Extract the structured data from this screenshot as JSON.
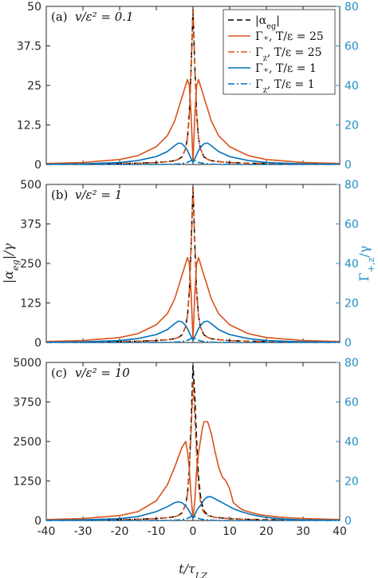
{
  "chart_data": [
    {
      "type": "line",
      "panel_label": "(a)",
      "annotation": "v/ε² = 0.1",
      "x": [
        -40,
        -30,
        -20,
        -15,
        -10,
        -7,
        -5,
        -4,
        -3,
        -2,
        -1.5,
        -1,
        -0.5,
        0,
        0.5,
        1,
        1.5,
        2,
        3,
        4,
        5,
        7,
        10,
        15,
        20,
        30,
        40
      ],
      "xlim": [
        -40,
        40
      ],
      "ylim_left": [
        0,
        50
      ],
      "yticks_left": [
        "0",
        "12.5",
        "25",
        "37.5",
        "50"
      ],
      "ylim_right": [
        0,
        80
      ],
      "yticks_right": [
        "0",
        "20",
        "40",
        "60",
        "80"
      ],
      "series": [
        {
          "name": "|α_eg|",
          "axis": "left",
          "style": "dashed",
          "color": "#000000",
          "values": [
            0.15,
            0.2,
            0.3,
            0.4,
            0.6,
            0.9,
            1.2,
            1.6,
            2.4,
            5,
            8.5,
            16,
            31,
            49,
            31,
            16,
            8.5,
            5,
            2.4,
            1.6,
            1.2,
            0.9,
            0.6,
            0.4,
            0.3,
            0.2,
            0.15
          ]
        },
        {
          "name": "Γ₊, T/ε = 25",
          "axis": "right",
          "style": "solid",
          "color": "#d95319",
          "values": [
            0.5,
            1,
            2.5,
            4.5,
            9,
            14.5,
            22,
            28,
            34,
            40,
            43,
            40,
            25,
            1,
            25,
            40,
            43,
            40,
            34,
            28,
            22,
            14.5,
            9,
            4.5,
            2.5,
            1,
            0.5
          ]
        },
        {
          "name": "Γ_z, T/ε = 25",
          "axis": "right",
          "style": "dashdot",
          "color": "#d95319",
          "values": [
            0.2,
            0.3,
            0.5,
            0.6,
            1,
            1.4,
            1.9,
            2.6,
            3.8,
            8,
            13.5,
            25,
            50,
            78,
            50,
            25,
            13.5,
            8,
            3.8,
            2.6,
            1.9,
            1.4,
            1,
            0.6,
            0.5,
            0.3,
            0.2
          ]
        },
        {
          "name": "Γ₊, T/ε = 1",
          "axis": "right",
          "style": "solid",
          "color": "#0072bd",
          "values": [
            0.1,
            0.3,
            1,
            2,
            4,
            6.5,
            9.5,
            10.8,
            10.5,
            8.5,
            7,
            5,
            3,
            1,
            3,
            5,
            7,
            8.5,
            10.5,
            10.8,
            9.5,
            6.5,
            4,
            2,
            1,
            0.3,
            0.1
          ]
        },
        {
          "name": "Γ_z, T/ε = 1",
          "axis": "right",
          "style": "dashdot",
          "color": "#0072bd",
          "values": [
            0,
            0,
            0,
            0,
            0,
            0.1,
            0.2,
            0.3,
            0.5,
            0.8,
            1.1,
            1.5,
            2,
            2.5,
            2,
            1.5,
            1.1,
            0.8,
            0.5,
            0.3,
            0.2,
            0.1,
            0,
            0,
            0,
            0,
            0
          ]
        }
      ]
    },
    {
      "type": "line",
      "panel_label": "(b)",
      "annotation": "v/ε² = 1",
      "x": [
        -40,
        -30,
        -20,
        -15,
        -10,
        -7,
        -5,
        -4,
        -3,
        -2,
        -1.5,
        -1,
        -0.5,
        0,
        0.5,
        1,
        1.5,
        2,
        3,
        4,
        5,
        7,
        10,
        15,
        20,
        30,
        40
      ],
      "xlim": [
        -40,
        40
      ],
      "ylim_left": [
        0,
        500
      ],
      "yticks_left": [
        "0",
        "125",
        "250",
        "375",
        "500"
      ],
      "ylim_right": [
        0,
        80
      ],
      "yticks_right": [
        "0",
        "20",
        "40",
        "60",
        "80"
      ],
      "series": [
        {
          "name": "|α_eg|",
          "axis": "left",
          "style": "dashed",
          "color": "#000000",
          "values": [
            1.5,
            2,
            3,
            4,
            6,
            9,
            12,
            16,
            24,
            50,
            85,
            160,
            310,
            490,
            310,
            160,
            85,
            50,
            24,
            16,
            12,
            9,
            6,
            4,
            3,
            2,
            1.5
          ]
        },
        {
          "name": "Γ₊, T/ε = 25",
          "axis": "right",
          "style": "solid",
          "color": "#d95319",
          "values": [
            0.5,
            1,
            2.5,
            4.5,
            9,
            14.5,
            22,
            28,
            34,
            40,
            43,
            40,
            25,
            1,
            25,
            40,
            43,
            40,
            34,
            28,
            22,
            14.5,
            9,
            4.5,
            2.5,
            1,
            0.5
          ]
        },
        {
          "name": "Γ_z, T/ε = 25",
          "axis": "right",
          "style": "dashdot",
          "color": "#d95319",
          "values": [
            0.2,
            0.3,
            0.5,
            0.6,
            1,
            1.4,
            1.9,
            2.6,
            3.8,
            8,
            13.5,
            25,
            50,
            78,
            50,
            25,
            13.5,
            8,
            3.8,
            2.6,
            1.9,
            1.4,
            1,
            0.6,
            0.5,
            0.3,
            0.2
          ]
        },
        {
          "name": "Γ₊, T/ε = 1",
          "axis": "right",
          "style": "solid",
          "color": "#0072bd",
          "values": [
            0.1,
            0.3,
            1,
            2,
            4,
            6.5,
            9.5,
            10.8,
            10.5,
            8.5,
            7,
            5,
            3,
            1,
            3,
            5,
            7,
            8.5,
            10.5,
            10.8,
            9.5,
            6.5,
            4,
            2,
            1,
            0.3,
            0.1
          ]
        },
        {
          "name": "Γ_z, T/ε = 1",
          "axis": "right",
          "style": "dashdot",
          "color": "#0072bd",
          "values": [
            0,
            0,
            0,
            0,
            0,
            0.1,
            0.2,
            0.3,
            0.5,
            0.8,
            1.1,
            1.5,
            2,
            2.5,
            2,
            1.5,
            1.1,
            0.8,
            0.5,
            0.3,
            0.2,
            0.1,
            0,
            0,
            0,
            0,
            0
          ]
        }
      ]
    },
    {
      "type": "line",
      "panel_label": "(c)",
      "annotation": "v/ε² = 10",
      "x": [
        -40,
        -30,
        -20,
        -15,
        -10,
        -7,
        -5,
        -4,
        -3,
        -2,
        -1.5,
        -1,
        -0.5,
        0,
        0.5,
        1,
        1.5,
        2,
        2.5,
        3,
        4,
        5,
        6,
        7,
        8,
        9,
        10,
        11,
        12,
        13,
        14,
        15,
        16,
        17,
        18,
        20,
        25,
        30,
        40
      ],
      "xlim": [
        -40,
        40
      ],
      "ylim_left": [
        0,
        5000
      ],
      "yticks_left": [
        "0",
        "1250",
        "2500",
        "3750",
        "5000"
      ],
      "ylim_right": [
        0,
        80
      ],
      "yticks_right": [
        "0",
        "20",
        "40",
        "60",
        "80"
      ],
      "series": [
        {
          "name": "|α_eg|",
          "axis": "left",
          "style": "dashed",
          "color": "#000000",
          "values": [
            15,
            20,
            30,
            40,
            60,
            90,
            120,
            160,
            240,
            500,
            850,
            1600,
            3100,
            4900,
            3900,
            2500,
            1400,
            800,
            500,
            300,
            180,
            130,
            100,
            90,
            80,
            70,
            60,
            55,
            50,
            45,
            40,
            38,
            35,
            32,
            30,
            28,
            22,
            18,
            15
          ]
        },
        {
          "name": "Γ₊, T/ε = 25",
          "axis": "right",
          "style": "solid",
          "color": "#d95319",
          "values": [
            0.5,
            1,
            2.5,
            4.5,
            10,
            18,
            27,
            32,
            37,
            40,
            35,
            26,
            12,
            1,
            10,
            26,
            34,
            40,
            46,
            50,
            50,
            44,
            35,
            27,
            22,
            20,
            16,
            9,
            7.5,
            6,
            5,
            4.5,
            4,
            3.5,
            3,
            2.5,
            1.5,
            1,
            0.5
          ]
        },
        {
          "name": "Γ_z, T/ε = 25",
          "axis": "right",
          "style": "dashdot",
          "color": "#d95319",
          "values": [
            0.2,
            0.3,
            0.5,
            0.6,
            1,
            1.4,
            1.9,
            2.6,
            3.8,
            8,
            13.5,
            25,
            45,
            70,
            52,
            32,
            18,
            10,
            6,
            4,
            2.5,
            2,
            1.6,
            1.4,
            1.2,
            1.1,
            1,
            0.9,
            0.8,
            0.7,
            0.6,
            0.6,
            0.5,
            0.5,
            0.5,
            0.4,
            0.3,
            0.2,
            0.2
          ]
        },
        {
          "name": "Γ₊, T/ε = 1",
          "axis": "right",
          "style": "solid",
          "color": "#0072bd",
          "values": [
            0.1,
            0.3,
            1,
            2,
            4.5,
            7,
            9,
            9.5,
            9,
            7.5,
            6.2,
            4.8,
            3,
            1,
            3,
            5,
            6.5,
            7.5,
            9,
            10.5,
            12,
            12,
            11,
            10,
            9,
            8,
            7,
            6,
            5.3,
            4.6,
            4,
            3.5,
            3,
            2.6,
            2.2,
            1.6,
            0.7,
            0.3,
            0.1
          ]
        },
        {
          "name": "Γ_z, T/ε = 1",
          "axis": "right",
          "style": "dashdot",
          "color": "#0072bd",
          "values": [
            0,
            0,
            0,
            0,
            0,
            0.1,
            0.2,
            0.3,
            0.5,
            0.8,
            1.1,
            1.5,
            2,
            2.5,
            2,
            1.5,
            1.1,
            0.8,
            0.6,
            0.5,
            0.3,
            0.2,
            0.1,
            0.1,
            0,
            0,
            0,
            0,
            0,
            0,
            0,
            0,
            0,
            0,
            0,
            0,
            0,
            0,
            0
          ]
        }
      ]
    }
  ],
  "axes": {
    "xlabel": "t/τ_LZ",
    "xticks": [
      "-40",
      "-30",
      "-20",
      "-10",
      "0",
      "10",
      "20",
      "30",
      "40"
    ],
    "ylabel_left": "|α_eg|/γ",
    "ylabel_right": "Γ_{+,z}/γ"
  },
  "legend": {
    "placement": "top-right of panel (a)",
    "entries": [
      {
        "label": "|α_eg|",
        "color": "#000000",
        "style": "dashed"
      },
      {
        "label": "Γ₊, T/ε = 25",
        "color": "#d95319",
        "style": "solid"
      },
      {
        "label": "Γ_z, T/ε = 25",
        "color": "#d95319",
        "style": "dashdot"
      },
      {
        "label": "Γ₊, T/ε = 1",
        "color": "#0072bd",
        "style": "solid"
      },
      {
        "label": "Γ_z, T/ε = 1",
        "color": "#0072bd",
        "style": "dashdot"
      }
    ]
  },
  "colors": {
    "right_axis": "#1f8fc4",
    "axis": "#262626"
  }
}
